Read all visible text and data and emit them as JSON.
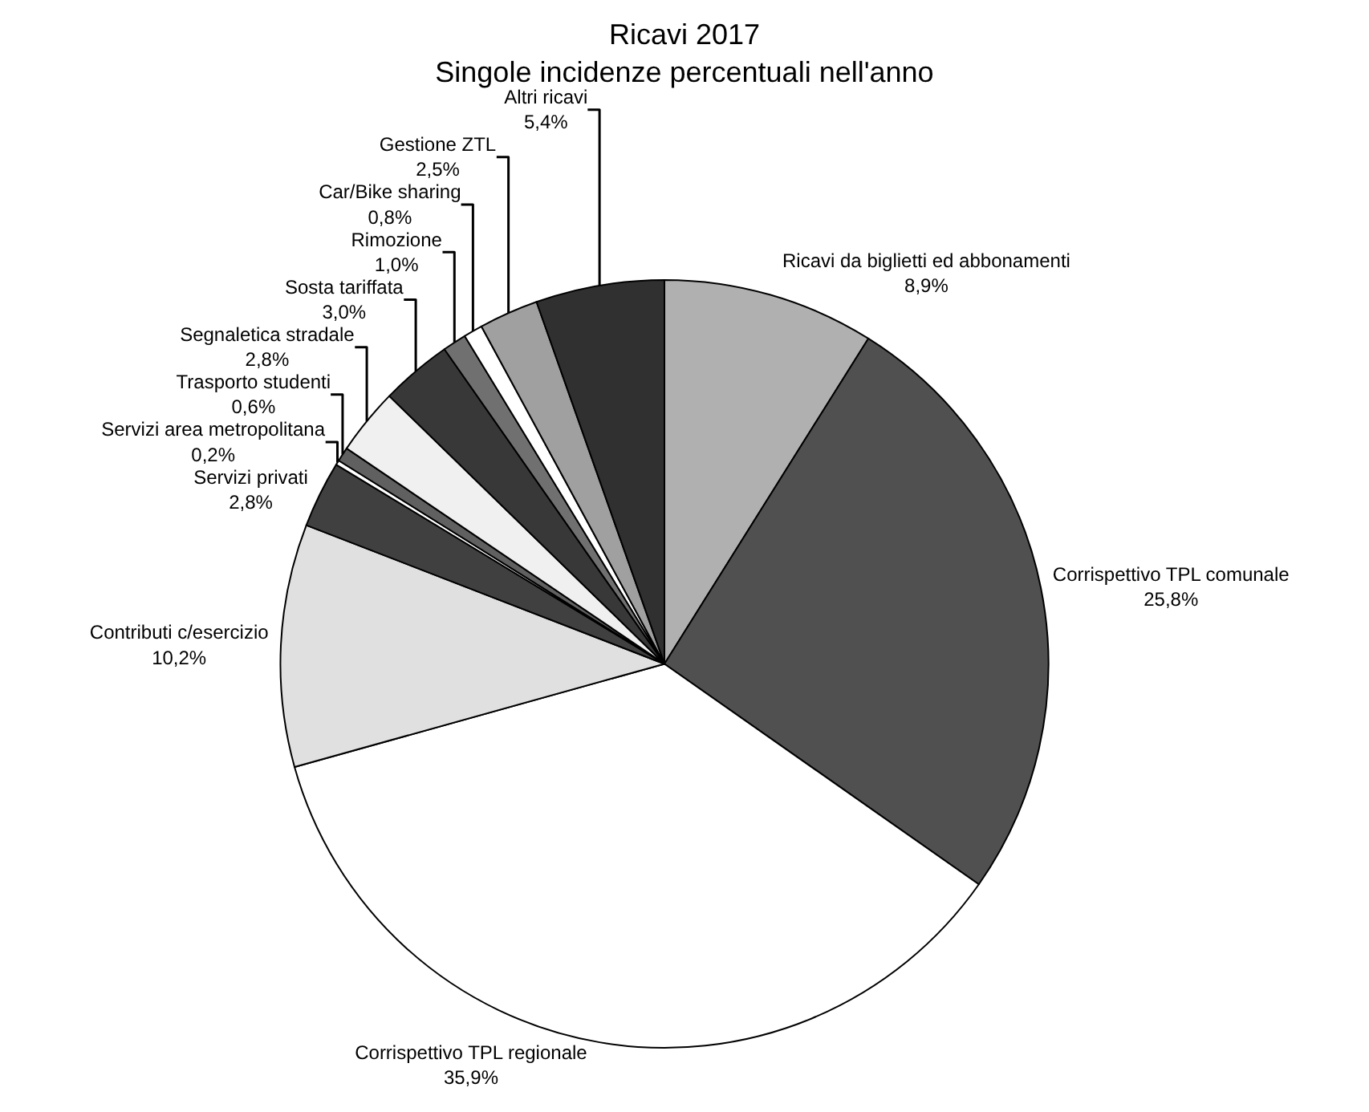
{
  "chart_data": {
    "type": "pie",
    "title": "Ricavi 2017",
    "subtitle": "Singole incidenze percentuali nell'anno",
    "categories": [
      "Ricavi da biglietti ed abbonamenti",
      "Corrispettivo TPL comunale",
      "Corrispettivo TPL regionale",
      "Contributi c/esercizio",
      "Servizi privati",
      "Servizi area metropolitana",
      "Trasporto studenti",
      "Segnaletica stradale",
      "Sosta tariffata",
      "Rimozione",
      "Car/Bike sharing",
      "Gestione ZTL",
      "Altri ricavi"
    ],
    "values": [
      8.9,
      25.8,
      35.9,
      10.2,
      2.8,
      0.2,
      0.6,
      2.8,
      3.0,
      1.0,
      0.8,
      2.5,
      5.4
    ],
    "value_labels": [
      "8,9%",
      "25,8%",
      "35,9%",
      "10,2%",
      "2,8%",
      "0,2%",
      "0,6%",
      "2,8%",
      "3,0%",
      "1,0%",
      "0,8%",
      "2,5%",
      "5,4%"
    ],
    "colors": [
      "#b0b0b0",
      "#505050",
      "#ffffff",
      "#e0e0e0",
      "#404040",
      "#ffffff",
      "#606060",
      "#f0f0f0",
      "#383838",
      "#707070",
      "#ffffff",
      "#a0a0a0",
      "#303030"
    ],
    "legend": false
  }
}
